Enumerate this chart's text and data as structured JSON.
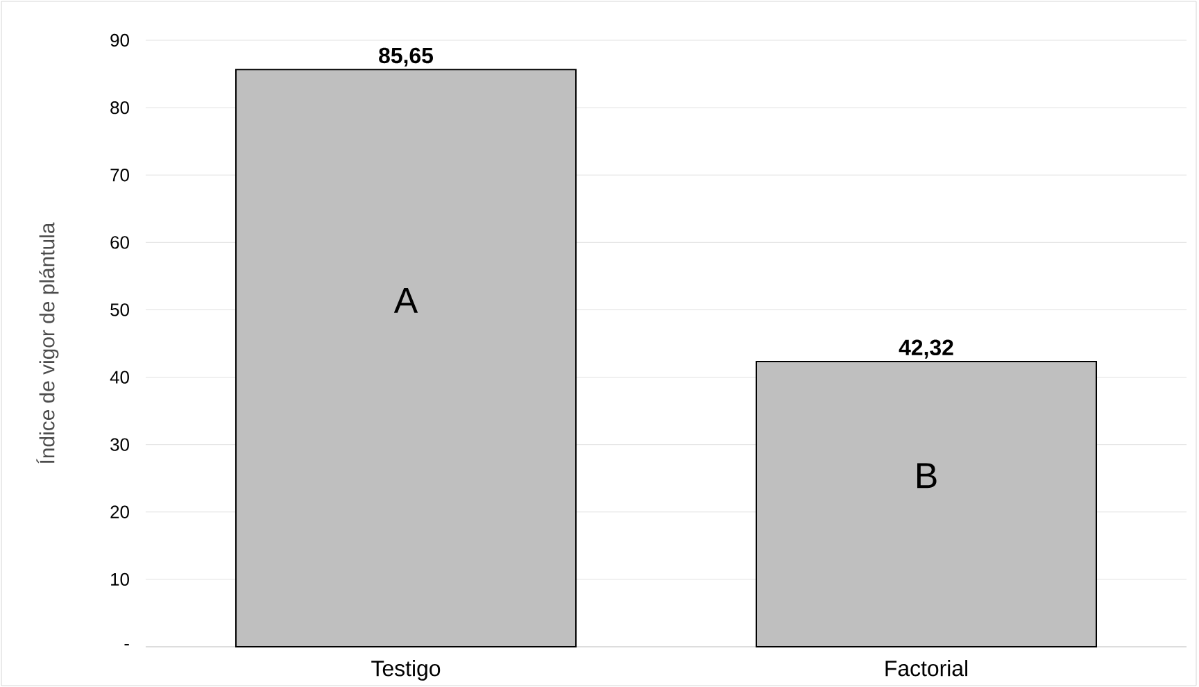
{
  "chart_data": {
    "type": "bar",
    "ylabel": "Índice de vigor de plántula",
    "categories": [
      "Testigo",
      "Factorial"
    ],
    "values": [
      85.65,
      42.32
    ],
    "value_labels": [
      "85,65",
      "42,32"
    ],
    "color": "#bfbfbf",
    "ylim": [
      0,
      90
    ],
    "yticks": [
      {
        "value": 0,
        "label": "-"
      },
      10,
      20,
      30,
      40,
      50,
      60,
      70,
      80,
      90
    ],
    "grid": "y",
    "annotations": [
      "A",
      "B"
    ]
  }
}
